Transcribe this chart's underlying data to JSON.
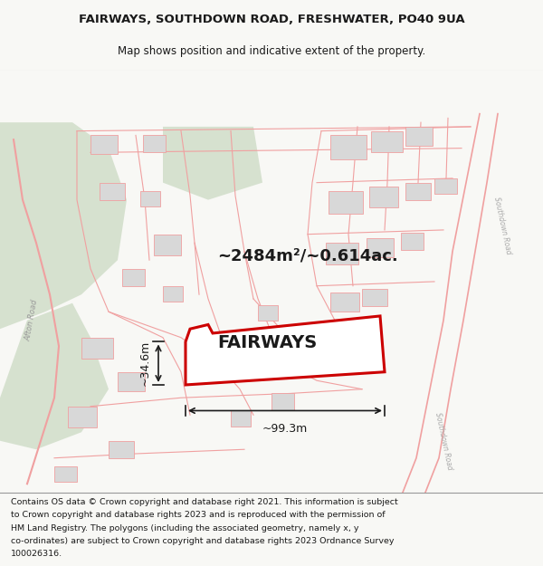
{
  "title_line1": "FAIRWAYS, SOUTHDOWN ROAD, FRESHWATER, PO40 9UA",
  "title_line2": "Map shows position and indicative extent of the property.",
  "property_label": "FAIRWAYS",
  "area_text": "~2484m²/~0.614ac.",
  "width_text": "~99.3m",
  "height_text": "~34.6m",
  "footer_lines": [
    "Contains OS data © Crown copyright and database right 2021. This information is subject",
    "to Crown copyright and database rights 2023 and is reproduced with the permission of",
    "HM Land Registry. The polygons (including the associated geometry, namely x, y",
    "co-ordinates) are subject to Crown copyright and database rights 2023 Ordnance Survey",
    "100026316."
  ],
  "bg_color": "#f8f8f5",
  "map_bg": "#ffffff",
  "green_fill": "#c8d8c0",
  "road_color": "#f0a0a0",
  "building_color": "#d8d8d8",
  "property_outline_color": "#cc0000",
  "dim_line_color": "#1a1a1a",
  "title_fontsize": 9.5,
  "subtitle_fontsize": 8.5,
  "label_fontsize": 14,
  "area_fontsize": 13,
  "dim_fontsize": 9,
  "footer_fontsize": 6.8
}
